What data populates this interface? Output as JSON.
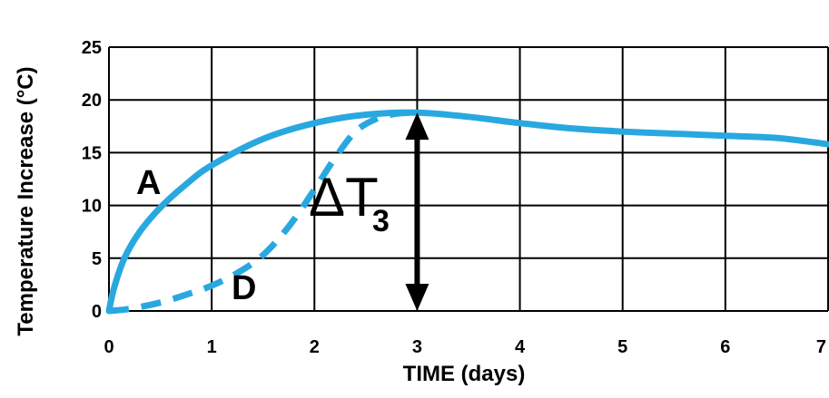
{
  "chart_data": {
    "type": "line",
    "xlabel": "TIME (days)",
    "ylabel": "Temperature Increase (°C)",
    "xlim": [
      0,
      7
    ],
    "ylim": [
      0,
      25
    ],
    "xticks": [
      0,
      1,
      2,
      3,
      4,
      5,
      6,
      7
    ],
    "yticks": [
      0,
      5,
      10,
      15,
      20,
      25
    ],
    "grid": true,
    "colors": {
      "series": "#29a8e0",
      "grid": "#000000",
      "arrow": "#000000"
    },
    "series": [
      {
        "name": "A",
        "style": "solid",
        "points": [
          [
            0,
            0
          ],
          [
            0.05,
            2.2
          ],
          [
            0.15,
            5
          ],
          [
            0.3,
            7.5
          ],
          [
            0.5,
            9.8
          ],
          [
            0.75,
            12
          ],
          [
            1,
            13.8
          ],
          [
            1.5,
            16.3
          ],
          [
            2,
            17.8
          ],
          [
            2.5,
            18.6
          ],
          [
            3,
            18.8
          ],
          [
            3.5,
            18.4
          ],
          [
            4,
            17.8
          ],
          [
            4.5,
            17.3
          ],
          [
            5,
            17
          ],
          [
            5.5,
            16.8
          ],
          [
            6,
            16.6
          ],
          [
            6.5,
            16.4
          ],
          [
            7,
            15.8
          ]
        ]
      },
      {
        "name": "D",
        "style": "dashed",
        "points": [
          [
            0,
            0
          ],
          [
            0.2,
            0.2
          ],
          [
            0.5,
            0.8
          ],
          [
            0.8,
            1.7
          ],
          [
            1,
            2.4
          ],
          [
            1.25,
            3.6
          ],
          [
            1.5,
            5.3
          ],
          [
            1.75,
            8
          ],
          [
            2,
            11.5
          ],
          [
            2.2,
            14.5
          ],
          [
            2.4,
            17
          ],
          [
            2.6,
            18.2
          ],
          [
            2.8,
            18.7
          ],
          [
            3,
            18.8
          ]
        ]
      }
    ],
    "annotations": [
      {
        "name": "delta",
        "main": "ΔT",
        "sub": "3",
        "x": 3,
        "y_from": 0,
        "y_to": 18.8
      }
    ]
  }
}
